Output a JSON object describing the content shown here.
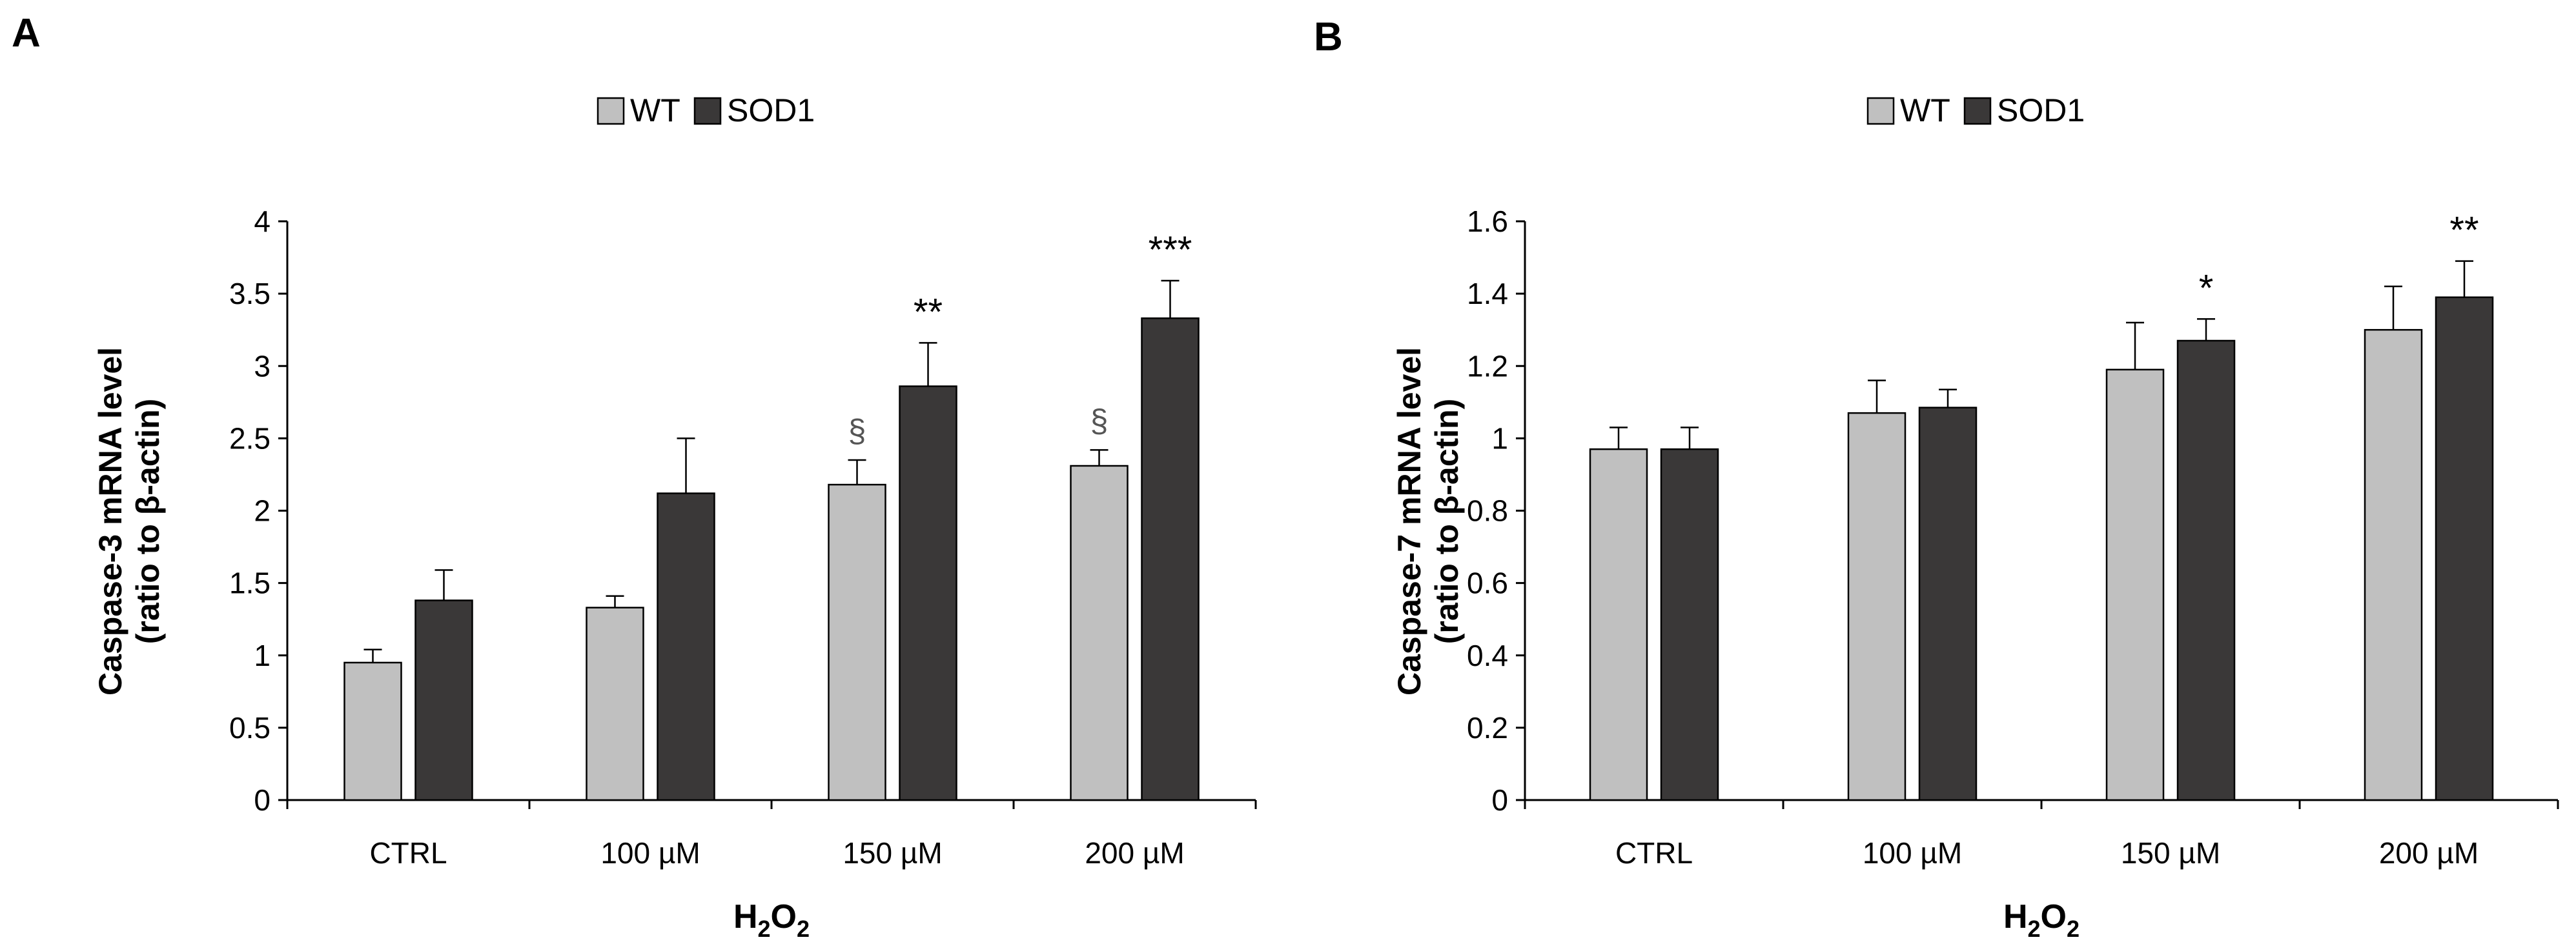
{
  "chart_data": [
    {
      "type": "bar",
      "panel_label": "A",
      "categories": [
        "CTRL",
        "100  µM",
        "150 µM",
        "200 µM"
      ],
      "series": [
        {
          "name": "WT",
          "color": "#c0c0c0",
          "values": [
            0.95,
            1.33,
            2.18,
            2.31
          ],
          "errors": [
            0.09,
            0.08,
            0.17,
            0.11
          ]
        },
        {
          "name": "SOD1",
          "color": "#3a3838",
          "values": [
            1.38,
            2.12,
            2.86,
            3.33
          ],
          "errors": [
            0.21,
            0.38,
            0.3,
            0.26
          ]
        }
      ],
      "annotations": [
        {
          "category": "150 µM",
          "series": "WT",
          "text": "§"
        },
        {
          "category": "200 µM",
          "series": "WT",
          "text": "§"
        },
        {
          "category": "150 µM",
          "series": "SOD1",
          "text": "**"
        },
        {
          "category": "200 µM",
          "series": "SOD1",
          "text": "***"
        }
      ],
      "ylabel_line1": "Caspase-3 mRNA level",
      "ylabel_line2": "(ratio to β-actin)",
      "xlabel_main": "H",
      "xlabel_sub1": "2",
      "xlabel_mid": "O",
      "xlabel_sub2": "2",
      "ylim": [
        0,
        4
      ],
      "ytick_labels": [
        "0",
        "0.5",
        "1",
        "1.5",
        "2",
        "2.5",
        "3",
        "3.5",
        "4"
      ],
      "grid": false,
      "legend": "top-center"
    },
    {
      "type": "bar",
      "panel_label": "B",
      "categories": [
        "CTRL",
        "100  µM",
        "150 µM",
        "200 µM"
      ],
      "series": [
        {
          "name": "WT",
          "color": "#c0c0c0",
          "values": [
            0.97,
            1.07,
            1.19,
            1.3
          ],
          "errors": [
            0.06,
            0.09,
            0.13,
            0.12
          ]
        },
        {
          "name": "SOD1",
          "color": "#3a3838",
          "values": [
            0.97,
            1.085,
            1.27,
            1.39
          ],
          "errors": [
            0.06,
            0.05,
            0.06,
            0.1
          ]
        }
      ],
      "annotations": [
        {
          "category": "150 µM",
          "series": "SOD1",
          "text": "*"
        },
        {
          "category": "200 µM",
          "series": "SOD1",
          "text": "**"
        }
      ],
      "ylabel_line1": "Caspase-7 mRNA level",
      "ylabel_line2": "(ratio to β-actin)",
      "xlabel_main": "H",
      "xlabel_sub1": "2",
      "xlabel_mid": "O",
      "xlabel_sub2": "2",
      "ylim": [
        0,
        1.6
      ],
      "ytick_labels": [
        "0",
        "0.2",
        "0.4",
        "0.6",
        "0.8",
        "1",
        "1.2",
        "1.4",
        "1.6"
      ],
      "grid": false,
      "legend": "top-center"
    }
  ]
}
